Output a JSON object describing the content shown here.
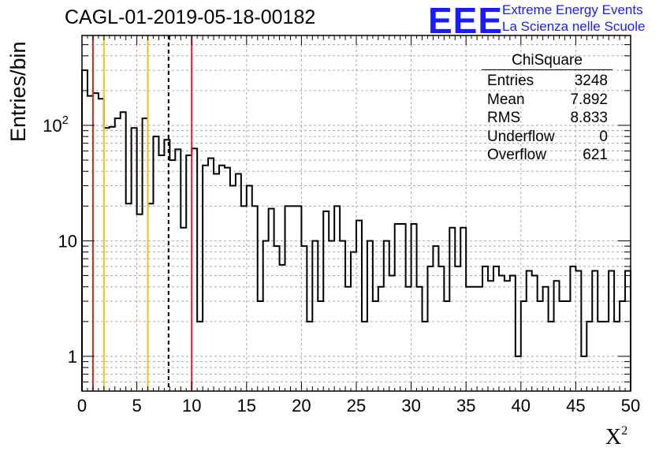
{
  "title": "CAGL-01-2019-05-18-00182",
  "logo": {
    "mark": "EEE",
    "line1": "Extreme Energy Events",
    "line2": "La Scienza nelle Scuole",
    "color": "#1a1aff"
  },
  "stats": {
    "name": "ChiSquare",
    "rows": [
      {
        "label": "Entries",
        "value": "3248"
      },
      {
        "label": "Mean",
        "value": "7.892"
      },
      {
        "label": "RMS",
        "value": "8.833"
      },
      {
        "label": "Underflow",
        "value": "0"
      },
      {
        "label": "Overflow",
        "value": "621"
      }
    ]
  },
  "chart_data": {
    "type": "histogram",
    "xlabel": "X",
    "xlabel_sup": "2",
    "ylabel": "Entries/bin",
    "xlim": [
      0,
      50
    ],
    "ylim": [
      0.5,
      600
    ],
    "y_scale": "log",
    "grid": true,
    "bin_width": 0.5,
    "x_ticks": [
      "0",
      "5",
      "10",
      "15",
      "20",
      "25",
      "30",
      "35",
      "40",
      "45",
      "50"
    ],
    "y_ticks": [
      {
        "value": 1,
        "label": "1"
      },
      {
        "value": 10,
        "label": "10"
      },
      {
        "value": 100,
        "label": "10",
        "sup": "2"
      }
    ],
    "counts": [
      300,
      180,
      190,
      170,
      95,
      97,
      115,
      130,
      21,
      95,
      17,
      115,
      21,
      80,
      55,
      75,
      50,
      62,
      13,
      55,
      63,
      2,
      45,
      52,
      38,
      45,
      43,
      30,
      38,
      20,
      30,
      20,
      3,
      10,
      19,
      9,
      6.2,
      20,
      20,
      20,
      9,
      2,
      10,
      3,
      18,
      10,
      20,
      10,
      4,
      8,
      15,
      2,
      10,
      3,
      4,
      10,
      5,
      14,
      14,
      4,
      14,
      4,
      2,
      6,
      9,
      6,
      3,
      13,
      6,
      13,
      4,
      4,
      4,
      6,
      4.5,
      6,
      5,
      4.5,
      5,
      1,
      3,
      5.5,
      5,
      3,
      4,
      2,
      4.5,
      3,
      3,
      6,
      5.5,
      1,
      2,
      5.5,
      2,
      2,
      5.5,
      2,
      3,
      5.5
    ],
    "vertical_lines": [
      {
        "x": 1,
        "color": "#dd2222",
        "style": "solid"
      },
      {
        "x": 2,
        "color": "#f0c020",
        "style": "solid"
      },
      {
        "x": 6,
        "color": "#f0c020",
        "style": "solid"
      },
      {
        "x": 7.892,
        "color": "#000000",
        "style": "dashed"
      },
      {
        "x": 10,
        "color": "#dd2222",
        "style": "solid"
      }
    ]
  }
}
